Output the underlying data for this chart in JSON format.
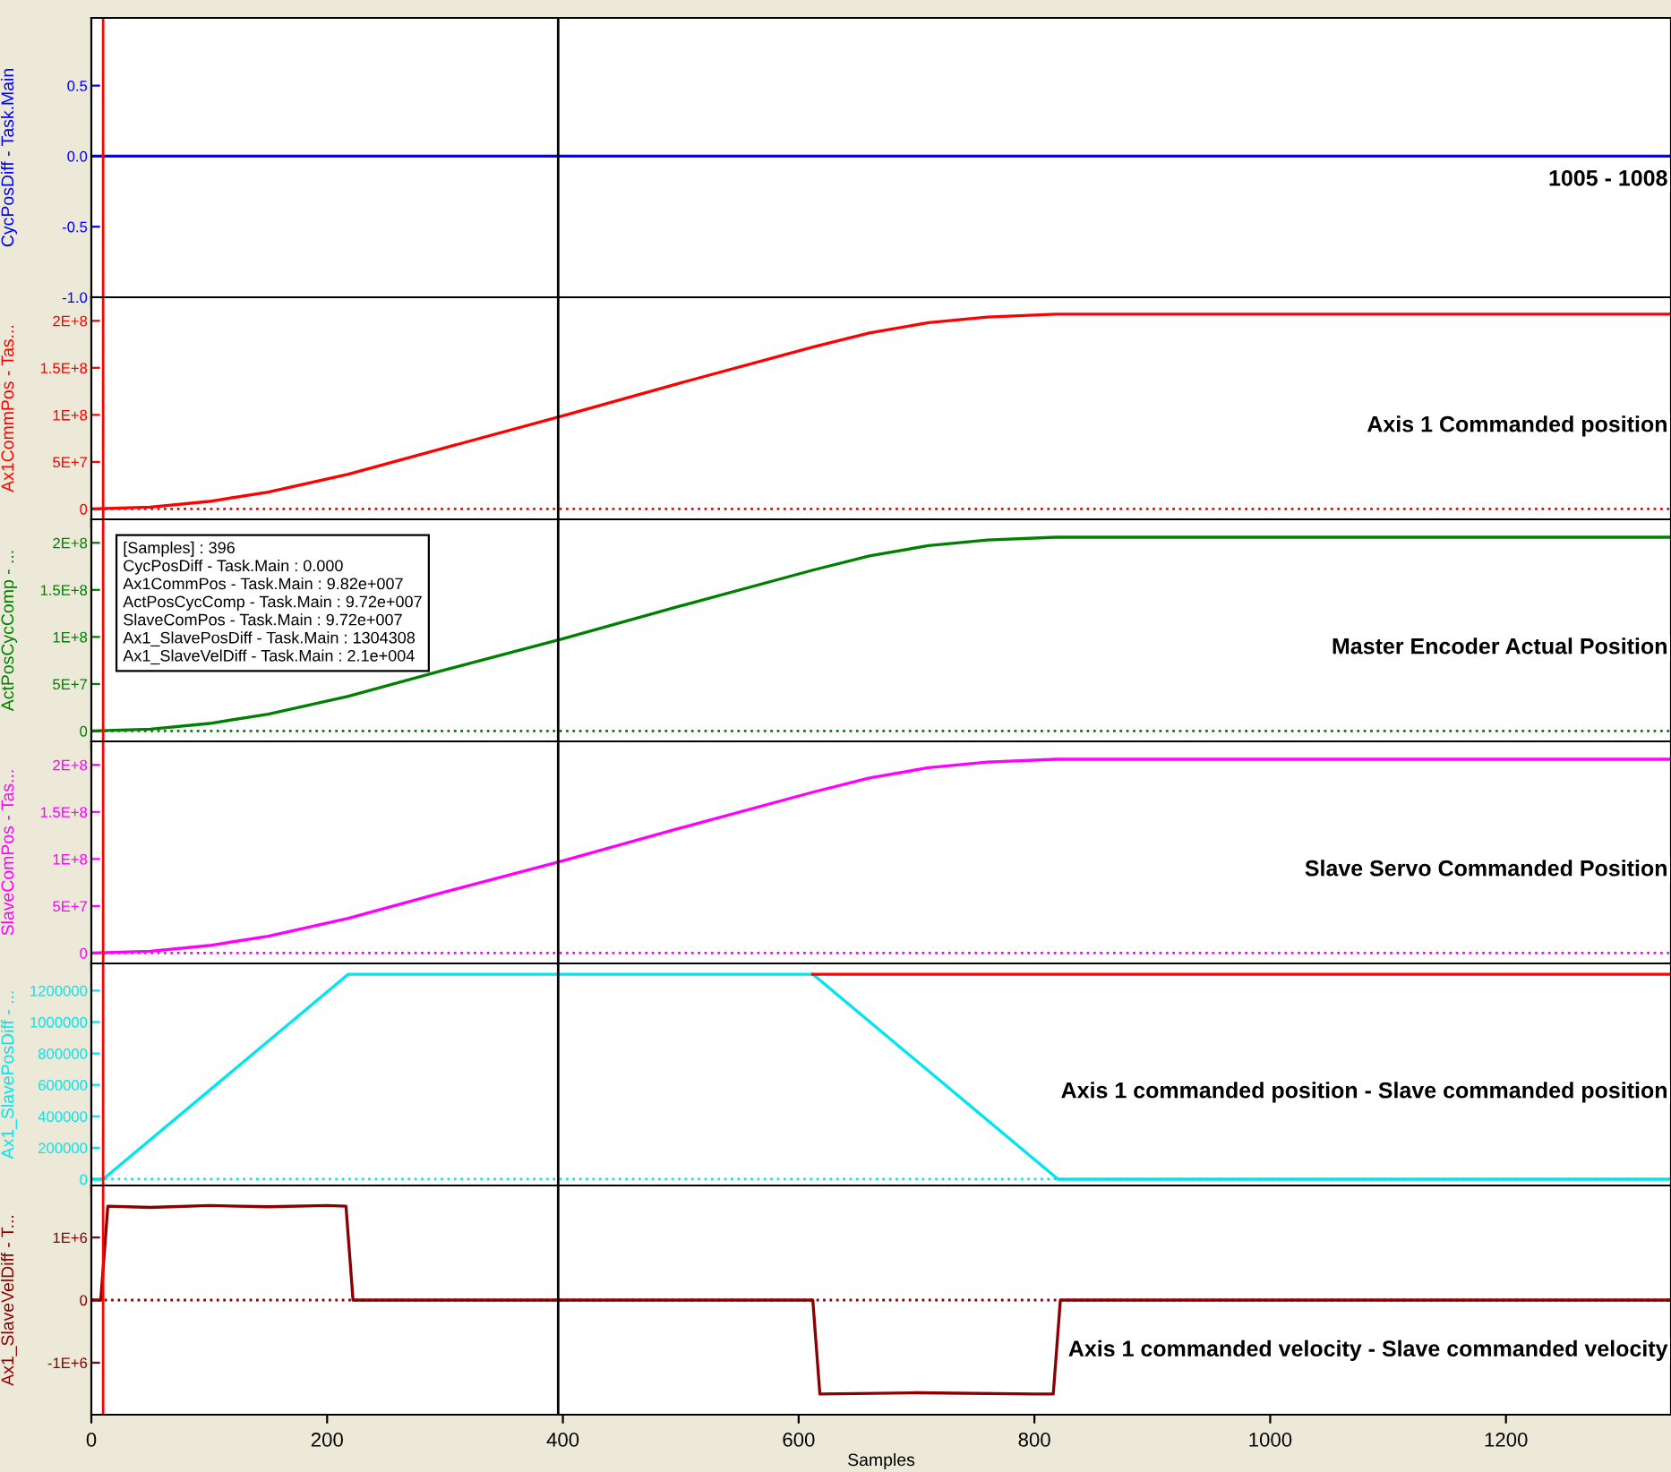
{
  "chart_data": [
    {
      "type": "line",
      "ylabel": "CycPosDiff - Task.Main",
      "xlim": [
        0,
        1340
      ],
      "xticks": [
        0,
        200,
        400,
        600,
        800,
        1000,
        1200
      ],
      "ylim": [
        -1.0,
        0.98
      ],
      "yticks": [
        {
          "value": -1.0,
          "label": "-1.0"
        },
        {
          "value": -0.5,
          "label": "-0.5"
        },
        {
          "value": 0.0,
          "label": "0.0"
        },
        {
          "value": 0.5,
          "label": "0.5"
        }
      ],
      "tick_labels": "y",
      "series": [
        {
          "color": "#0000ff",
          "x": [
            0,
            1340
          ],
          "values": [
            0,
            0
          ]
        }
      ],
      "ref_lines": [
        {
          "axis": "x",
          "value": 10,
          "color": "#ff0000"
        },
        {
          "axis": "x",
          "value": 396,
          "color": "#000000"
        }
      ],
      "annotations": [
        "1005 - 1008"
      ]
    },
    {
      "type": "line",
      "ylabel": "Ax1CommPos - Tas...",
      "xlim": [
        0,
        1340
      ],
      "xticks": [
        0,
        200,
        400,
        600,
        800,
        1000,
        1200
      ],
      "ylim": [
        -11000000,
        225000000
      ],
      "yticks": [
        0,
        {
          "value": 50000000,
          "label": "5E+7"
        },
        {
          "value": 100000000,
          "label": "1E+8"
        },
        {
          "value": 150000000,
          "label": "1.5E+8"
        },
        {
          "value": 200000000,
          "label": "2E+8"
        }
      ],
      "tick_labels": "y",
      "series": [
        {
          "color": "#ff0000",
          "x": [
            0,
            50,
            100,
            150,
            218,
            300,
            400,
            500,
            612,
            660,
            710,
            760,
            818,
            1340
          ],
          "values": [
            0,
            2000000,
            8000000,
            18000000,
            37000000,
            65000000,
            99000000,
            134000000,
            172000000,
            187000000,
            198000000,
            204000000,
            207000000,
            207000000
          ]
        }
      ],
      "ref_lines": [
        {
          "axis": "y",
          "value": 0,
          "color": "#ff0000",
          "line_style": "dotted"
        },
        {
          "axis": "x",
          "value": 10,
          "color": "#ff0000"
        },
        {
          "axis": "x",
          "value": 396,
          "color": "#000000"
        }
      ],
      "annotations": [
        "Axis 1 Commanded position"
      ]
    },
    {
      "type": "line",
      "ylabel": "ActPosCycComp - ...",
      "xlim": [
        0,
        1340
      ],
      "xticks": [
        0,
        200,
        400,
        600,
        800,
        1000,
        1200
      ],
      "ylim": [
        -11000000,
        225000000
      ],
      "yticks": [
        0,
        {
          "value": 50000000,
          "label": "5E+7"
        },
        {
          "value": 100000000,
          "label": "1E+8"
        },
        {
          "value": 150000000,
          "label": "1.5E+8"
        },
        {
          "value": 200000000,
          "label": "2E+8"
        }
      ],
      "tick_labels": "y",
      "series": [
        {
          "color": "#008000",
          "x": [
            0,
            50,
            100,
            150,
            218,
            300,
            400,
            500,
            612,
            660,
            710,
            760,
            818,
            1340
          ],
          "values": [
            0,
            2000000,
            8000000,
            18000000,
            37000000,
            65000000,
            98000000,
            133000000,
            171000000,
            186000000,
            197000000,
            203000000,
            206000000,
            206000000
          ]
        }
      ],
      "ref_lines": [
        {
          "axis": "y",
          "value": 0,
          "color": "#008000",
          "line_style": "dotted"
        },
        {
          "axis": "x",
          "value": 10,
          "color": "#ff0000"
        },
        {
          "axis": "x",
          "value": 396,
          "color": "#000000"
        }
      ],
      "annotations": [
        "Master Encoder Actual Position",
        "[Samples] : 396",
        "CycPosDiff - Task.Main : 0.000",
        "Ax1CommPos - Task.Main : 9.82e+007",
        "ActPosCycComp - Task.Main : 9.72e+007",
        "SlaveComPos - Task.Main : 9.72e+007",
        "Ax1_SlavePosDiff - Task.Main : 1304308",
        "Ax1_SlaveVelDiff - Task.Main : 2.1e+004"
      ]
    },
    {
      "type": "line",
      "ylabel": "SlaveComPos - Tas...",
      "xlim": [
        0,
        1340
      ],
      "xticks": [
        0,
        200,
        400,
        600,
        800,
        1000,
        1200
      ],
      "ylim": [
        -11000000,
        225000000
      ],
      "yticks": [
        0,
        {
          "value": 50000000,
          "label": "5E+7"
        },
        {
          "value": 100000000,
          "label": "1E+8"
        },
        {
          "value": 150000000,
          "label": "1.5E+8"
        },
        {
          "value": 200000000,
          "label": "2E+8"
        }
      ],
      "tick_labels": "y",
      "series": [
        {
          "color": "#ff00ff",
          "x": [
            0,
            50,
            100,
            150,
            218,
            300,
            400,
            500,
            612,
            660,
            710,
            760,
            818,
            1340
          ],
          "values": [
            0,
            2000000,
            8000000,
            18000000,
            37000000,
            65000000,
            98000000,
            133000000,
            171000000,
            186000000,
            197000000,
            203000000,
            206000000,
            206000000
          ]
        }
      ],
      "ref_lines": [
        {
          "axis": "y",
          "value": 0,
          "color": "#ff00ff",
          "line_style": "dotted"
        },
        {
          "axis": "x",
          "value": 10,
          "color": "#ff0000"
        },
        {
          "axis": "x",
          "value": 396,
          "color": "#000000"
        }
      ],
      "annotations": [
        "Slave Servo Commanded Position"
      ]
    },
    {
      "type": "line",
      "ylabel": "Ax1_SlavePosDiff - ...",
      "xlim": [
        0,
        1340
      ],
      "xticks": [
        0,
        200,
        400,
        600,
        800,
        1000,
        1200
      ],
      "ylim": [
        -40000,
        1373000
      ],
      "yticks": [
        0,
        200000,
        400000,
        600000,
        800000,
        1000000,
        1200000
      ],
      "tick_labels": "y",
      "series": [
        {
          "color": "#00e5ee",
          "x": [
            0,
            10,
            218,
            612,
            820,
            1340
          ],
          "values": [
            0,
            0,
            1304308,
            1304308,
            0,
            0
          ]
        },
        {
          "color": "#ff0000",
          "x": [
            612,
            1340
          ],
          "values": [
            1304308,
            1304308
          ]
        }
      ],
      "ref_lines": [
        {
          "axis": "y",
          "value": 0,
          "color": "#00e5ee",
          "line_style": "dotted"
        },
        {
          "axis": "x",
          "value": 10,
          "color": "#ff0000"
        },
        {
          "axis": "x",
          "value": 396,
          "color": "#000000"
        }
      ],
      "annotations": [
        "Axis 1 commanded position - Slave commanded position"
      ]
    },
    {
      "type": "line",
      "ylabel": "Ax1_SlaveVelDiff - T...",
      "xlabel": "Samples",
      "xlim": [
        0,
        1340
      ],
      "xticks": [
        0,
        200,
        400,
        600,
        800,
        1000,
        1200
      ],
      "ylim": [
        -1830000,
        1830000
      ],
      "yticks": [
        {
          "value": -1000000,
          "label": "-1E+6"
        },
        0,
        {
          "value": 1000000,
          "label": "1E+6"
        }
      ],
      "series": [
        {
          "color": "#8b0000",
          "x": [
            0,
            8,
            14,
            50,
            100,
            150,
            200,
            216,
            222,
            300,
            400,
            500,
            612,
            618,
            700,
            800,
            816,
            822,
            1340
          ],
          "values": [
            0,
            0,
            1500000,
            1480000,
            1510000,
            1490000,
            1510000,
            1500000,
            0,
            0,
            0,
            0,
            0,
            -1500000,
            -1480000,
            -1500000,
            -1500000,
            0,
            0
          ]
        }
      ],
      "ref_lines": [
        {
          "axis": "y",
          "value": 0,
          "color": "#8b0000",
          "line_style": "dotted"
        },
        {
          "axis": "x",
          "value": 10,
          "color": "#ff0000"
        },
        {
          "axis": "x",
          "value": 396,
          "color": "#000000"
        }
      ],
      "annotations": [
        "Axis 1 commanded velocity - Slave commanded velocity"
      ]
    }
  ]
}
